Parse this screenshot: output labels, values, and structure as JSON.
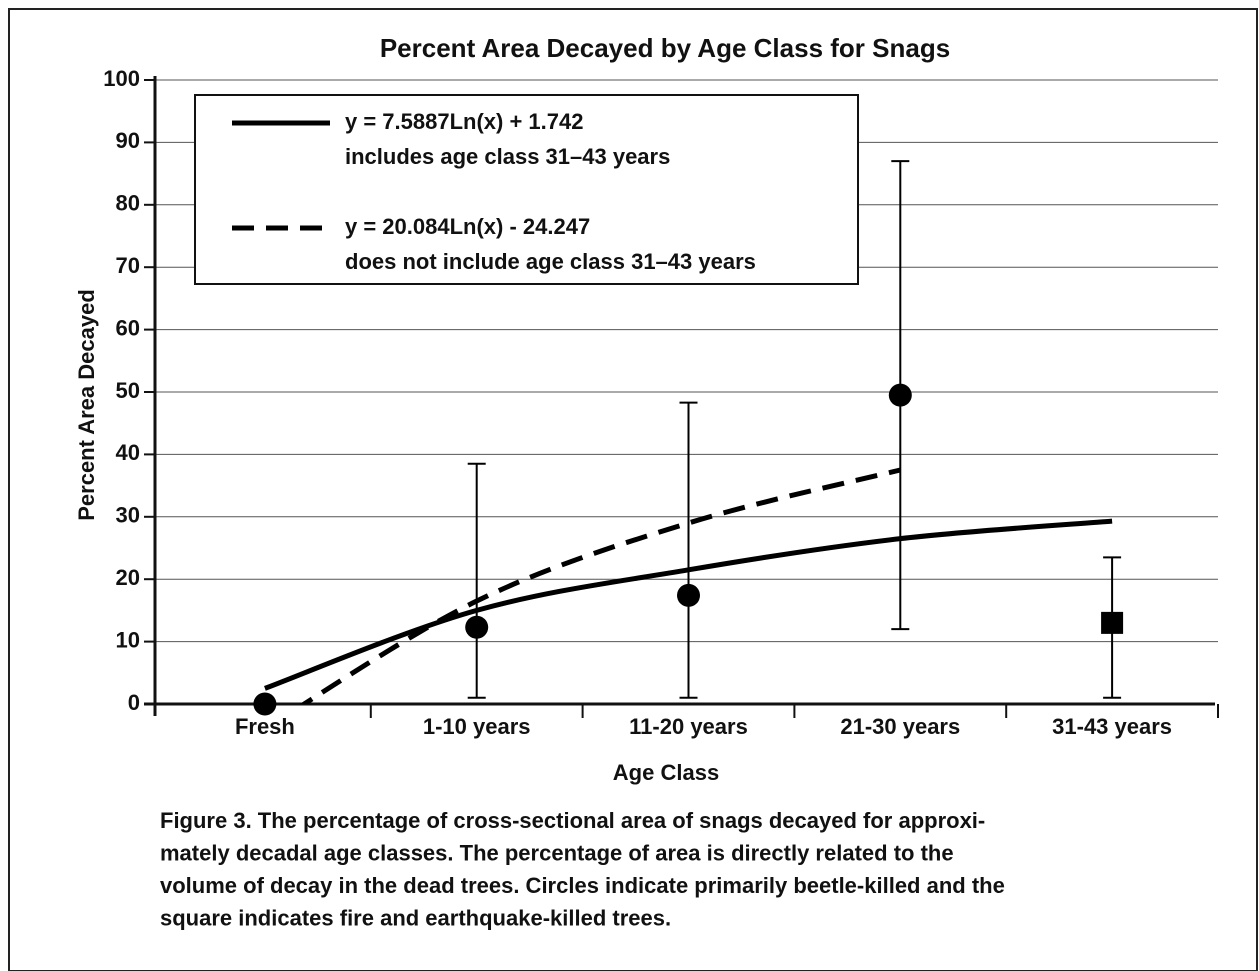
{
  "chart_data": {
    "type": "errorbar",
    "title": "Percent Area Decayed by Age Class for Snags",
    "x_label": "Age Class",
    "y_label": "Percent Area Decayed",
    "categories": [
      "Fresh",
      "1-10 years",
      "11-20 years",
      "21-30 years",
      "31-43 years"
    ],
    "ylim": [
      0,
      100
    ],
    "yticks": [
      0,
      10,
      20,
      30,
      40,
      50,
      60,
      70,
      80,
      90,
      100
    ],
    "grid": true,
    "series": [
      {
        "marker": "circle",
        "color": "#000000",
        "values": [
          0,
          12.3,
          17.4,
          49.5,
          null
        ],
        "error_low": [
          null,
          1,
          1,
          12,
          null
        ],
        "error_high": [
          null,
          38.5,
          48.3,
          87,
          null
        ]
      },
      {
        "marker": "square",
        "color": "#000000",
        "values": [
          null,
          null,
          null,
          null,
          13
        ],
        "error_low": [
          null,
          null,
          null,
          null,
          1
        ],
        "error_high": [
          null,
          null,
          null,
          null,
          23.5
        ]
      }
    ],
    "trend_lines": [
      {
        "name": "y = 7.5887Ln(x) + 1.742",
        "description": "includes age class 31–43 years",
        "dash": "solid",
        "color": "#000000",
        "values": [
          2.5,
          15,
          21.5,
          26.5,
          29.3
        ]
      },
      {
        "name": "y = 20.084Ln(x) - 24.247",
        "description": "does not include age class 31–43 years",
        "dash": "dashed",
        "color": "#000000",
        "values": [
          -4,
          16.5,
          29,
          37.5,
          null
        ]
      }
    ],
    "legend": "upper left",
    "caption": [
      "Figure 3. The percentage of cross-sectional area of snags decayed for approxi-",
      "mately decadal age classes. The percentage of area is directly related to the",
      "volume of decay in the dead trees. Circles indicate primarily beetle-killed and the",
      "square indicates fire and earthquake-killed trees."
    ]
  }
}
